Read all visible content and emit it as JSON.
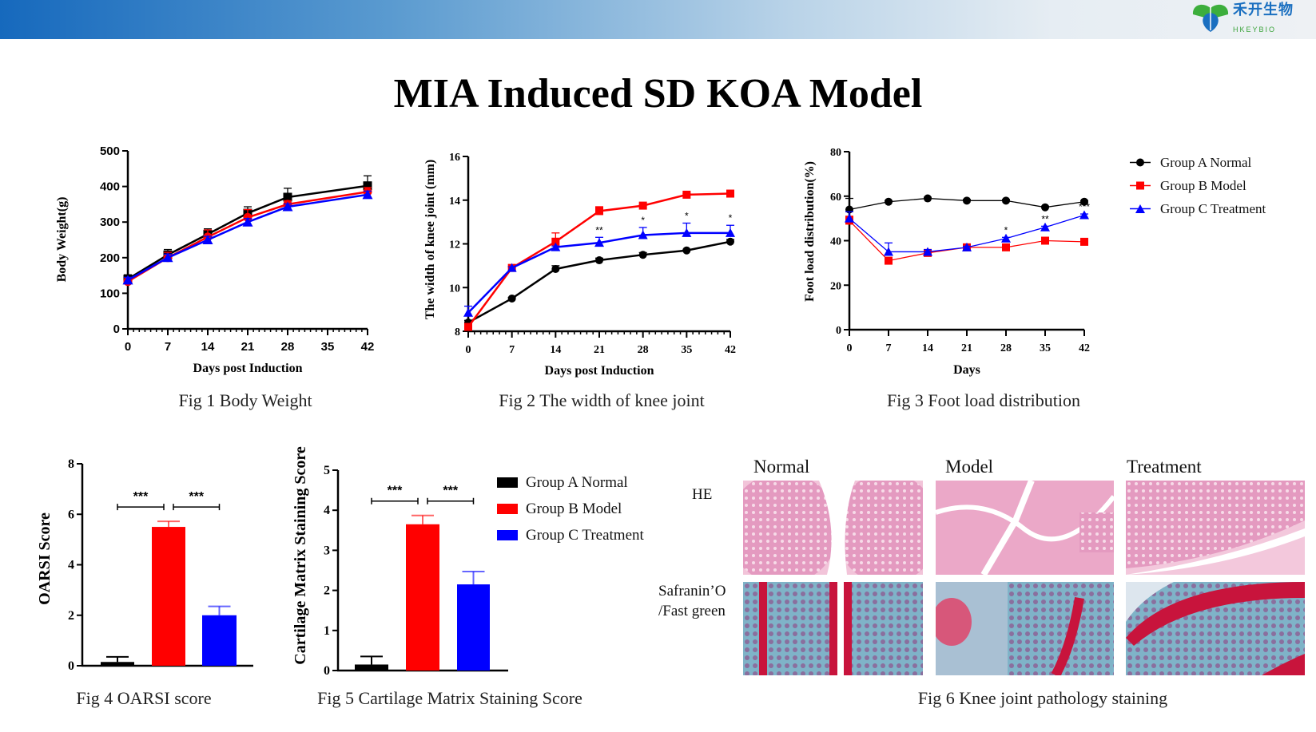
{
  "header": {
    "logo_cn": "禾开生物",
    "logo_en": "HKEYBIO"
  },
  "title": "MIA Induced SD KOA Model",
  "colors": {
    "group_a": "#000000",
    "group_b": "#ff0000",
    "group_c": "#0000ff"
  },
  "legend": [
    "Group A Normal",
    "Group B Model",
    "Group C Treatment"
  ],
  "captions": {
    "fig1": "Fig 1 Body Weight",
    "fig2": "Fig 2 The width of knee joint",
    "fig3": "Fig 3 Foot load distribution",
    "fig4": "Fig 4 OARSI score",
    "fig5": "Fig 5 Cartilage Matrix Staining Score",
    "fig6": "Fig 6 Knee joint pathology staining"
  },
  "fig6": {
    "columns": [
      "Normal",
      "Model",
      "Treatment"
    ],
    "rows": [
      "HE",
      "Safranin’O",
      "/Fast green"
    ]
  },
  "chart_data": [
    {
      "type": "line",
      "xlabel": "Days post Induction",
      "ylabel": "Body Weight(g)",
      "xlim": [
        0,
        42
      ],
      "ylim": [
        0,
        500
      ],
      "xticks": [
        0,
        7,
        14,
        21,
        28,
        35,
        42
      ],
      "yticks": [
        0,
        100,
        200,
        300,
        400,
        500
      ],
      "x": [
        0,
        7,
        14,
        21,
        28,
        42
      ],
      "series": [
        {
          "group": "Group A Normal",
          "marker": "square",
          "color": "#000000",
          "values": [
            140,
            208,
            266,
            325,
            370,
            402
          ],
          "error": [
            12,
            15,
            15,
            18,
            25,
            28
          ]
        },
        {
          "group": "Group B Model",
          "marker": "circle",
          "color": "#ff0000",
          "values": [
            133,
            200,
            258,
            313,
            350,
            385
          ],
          "error": [
            8,
            15,
            20,
            22,
            10,
            12
          ]
        },
        {
          "group": "Group C Treatment",
          "marker": "triangle",
          "color": "#0000ff",
          "values": [
            137,
            200,
            250,
            300,
            343,
            377
          ],
          "error": [
            8,
            10,
            10,
            10,
            8,
            10
          ]
        }
      ],
      "annotations": []
    },
    {
      "type": "line",
      "xlabel": "Days post Induction",
      "ylabel": "The width of knee joint (mm)",
      "xlim": [
        0,
        42
      ],
      "ylim": [
        8,
        16
      ],
      "xticks": [
        0,
        7,
        14,
        21,
        28,
        35,
        42
      ],
      "yticks": [
        8,
        10,
        12,
        14,
        16
      ],
      "x": [
        0,
        7,
        14,
        21,
        28,
        35,
        42
      ],
      "series": [
        {
          "group": "Group A Normal",
          "marker": "circle",
          "color": "#000000",
          "values": [
            8.4,
            9.5,
            10.85,
            11.25,
            11.5,
            11.7,
            12.1
          ],
          "error": [
            0.1,
            0.05,
            0.15,
            0.1,
            0.1,
            0.05,
            0.1
          ]
        },
        {
          "group": "Group B Model",
          "marker": "square",
          "color": "#ff0000",
          "values": [
            8.2,
            10.9,
            12.1,
            13.5,
            13.75,
            14.25,
            14.3
          ],
          "error": [
            0.1,
            0.05,
            0.4,
            0.2,
            0.05,
            0.05,
            0.05
          ]
        },
        {
          "group": "Group C Treatment",
          "marker": "triangle",
          "color": "#0000ff",
          "values": [
            8.85,
            10.9,
            11.85,
            12.05,
            12.4,
            12.5,
            12.5
          ],
          "error": [
            0.3,
            0.05,
            0.05,
            0.25,
            0.35,
            0.45,
            0.35
          ]
        }
      ],
      "annotations": [
        {
          "x": 21,
          "text": "**"
        },
        {
          "x": 28,
          "text": "*"
        },
        {
          "x": 35,
          "text": "*"
        },
        {
          "x": 42,
          "text": "*"
        }
      ]
    },
    {
      "type": "line",
      "xlabel": "Days",
      "ylabel": "Foot load distribution(%)",
      "xlim": [
        0,
        42
      ],
      "ylim": [
        0,
        80
      ],
      "xticks": [
        0,
        7,
        14,
        21,
        28,
        35,
        42
      ],
      "yticks": [
        0,
        20,
        40,
        60,
        80
      ],
      "x": [
        0,
        7,
        14,
        21,
        28,
        35,
        42
      ],
      "series": [
        {
          "group": "Group A Normal",
          "marker": "circle",
          "color": "#000000",
          "values": [
            54,
            57.5,
            59,
            58,
            58,
            55,
            57.5
          ],
          "error": [
            5,
            0.5,
            0.5,
            0.5,
            0.5,
            0.5,
            0.5
          ]
        },
        {
          "group": "Group B Model",
          "marker": "square",
          "color": "#ff0000",
          "values": [
            49,
            31,
            34.5,
            37,
            37,
            40,
            39.5
          ],
          "error": [
            2,
            0.5,
            0.5,
            0.5,
            0.5,
            0.5,
            0.5
          ]
        },
        {
          "group": "Group C Treatment",
          "marker": "triangle",
          "color": "#0000ff",
          "values": [
            50,
            35,
            35,
            37,
            41,
            46,
            51.5
          ],
          "error": [
            3,
            4,
            1,
            0.5,
            0.5,
            0.5,
            0.5
          ]
        }
      ],
      "annotations": [
        {
          "x": 28,
          "text": "*"
        },
        {
          "x": 35,
          "text": "**"
        },
        {
          "x": 42,
          "text": "***"
        }
      ],
      "legend_position": "right"
    },
    {
      "type": "bar",
      "ylabel": "OARSI Score",
      "ylim": [
        0,
        8
      ],
      "yticks": [
        0,
        2,
        4,
        6,
        8
      ],
      "categories": [
        "Group A Normal",
        "Group B Model",
        "Group C Treatment"
      ],
      "values": [
        0.15,
        5.5,
        2.0
      ],
      "error": [
        0.2,
        0.22,
        0.35
      ],
      "significance": [
        {
          "from": 0,
          "to": 1,
          "text": "***"
        },
        {
          "from": 1,
          "to": 2,
          "text": "***"
        }
      ]
    },
    {
      "type": "bar",
      "ylabel": "Cartilage Matrix Staining Score",
      "ylim": [
        0,
        5
      ],
      "yticks": [
        0,
        1,
        2,
        3,
        4,
        5
      ],
      "categories": [
        "Group A Normal",
        "Group B Model",
        "Group C Treatment"
      ],
      "values": [
        0.15,
        3.65,
        2.15
      ],
      "error": [
        0.2,
        0.22,
        0.32
      ],
      "significance": [
        {
          "from": 0,
          "to": 1,
          "text": "***"
        },
        {
          "from": 1,
          "to": 2,
          "text": "***"
        }
      ],
      "legend_position": "right"
    }
  ]
}
